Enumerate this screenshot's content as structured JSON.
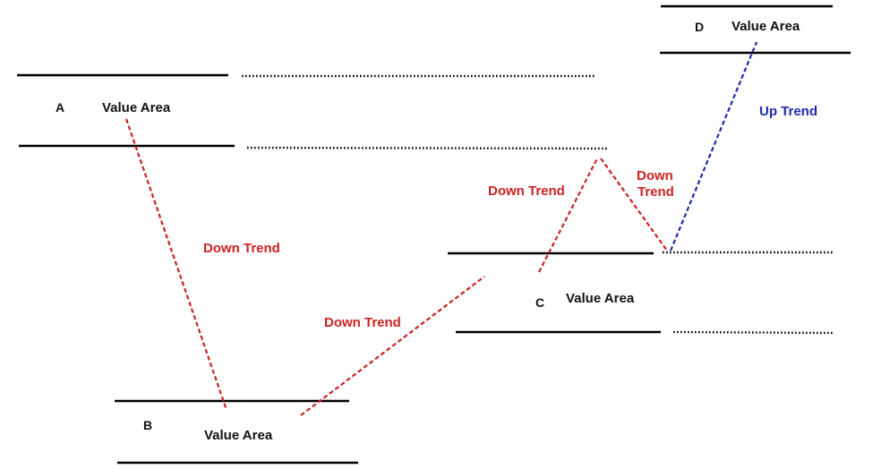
{
  "colors": {
    "line": "#000000",
    "label": "#111111",
    "down_trend": "#cc2222",
    "up_trend": "#1f2aa8"
  },
  "areas": [
    {
      "letter": "A",
      "label": "Value Area"
    },
    {
      "letter": "B",
      "label": "Value Area"
    },
    {
      "letter": "C",
      "label": "Value Area"
    },
    {
      "letter": "D",
      "label": "Value Area"
    }
  ],
  "trends": [
    {
      "label": "Down Trend",
      "kind": "down"
    },
    {
      "label": "Down Trend",
      "kind": "down"
    },
    {
      "label": "Down Trend",
      "kind": "down"
    },
    {
      "label_line1": "Down",
      "label_line2": "Trend",
      "kind": "down"
    },
    {
      "label": "Up Trend",
      "kind": "up"
    }
  ]
}
